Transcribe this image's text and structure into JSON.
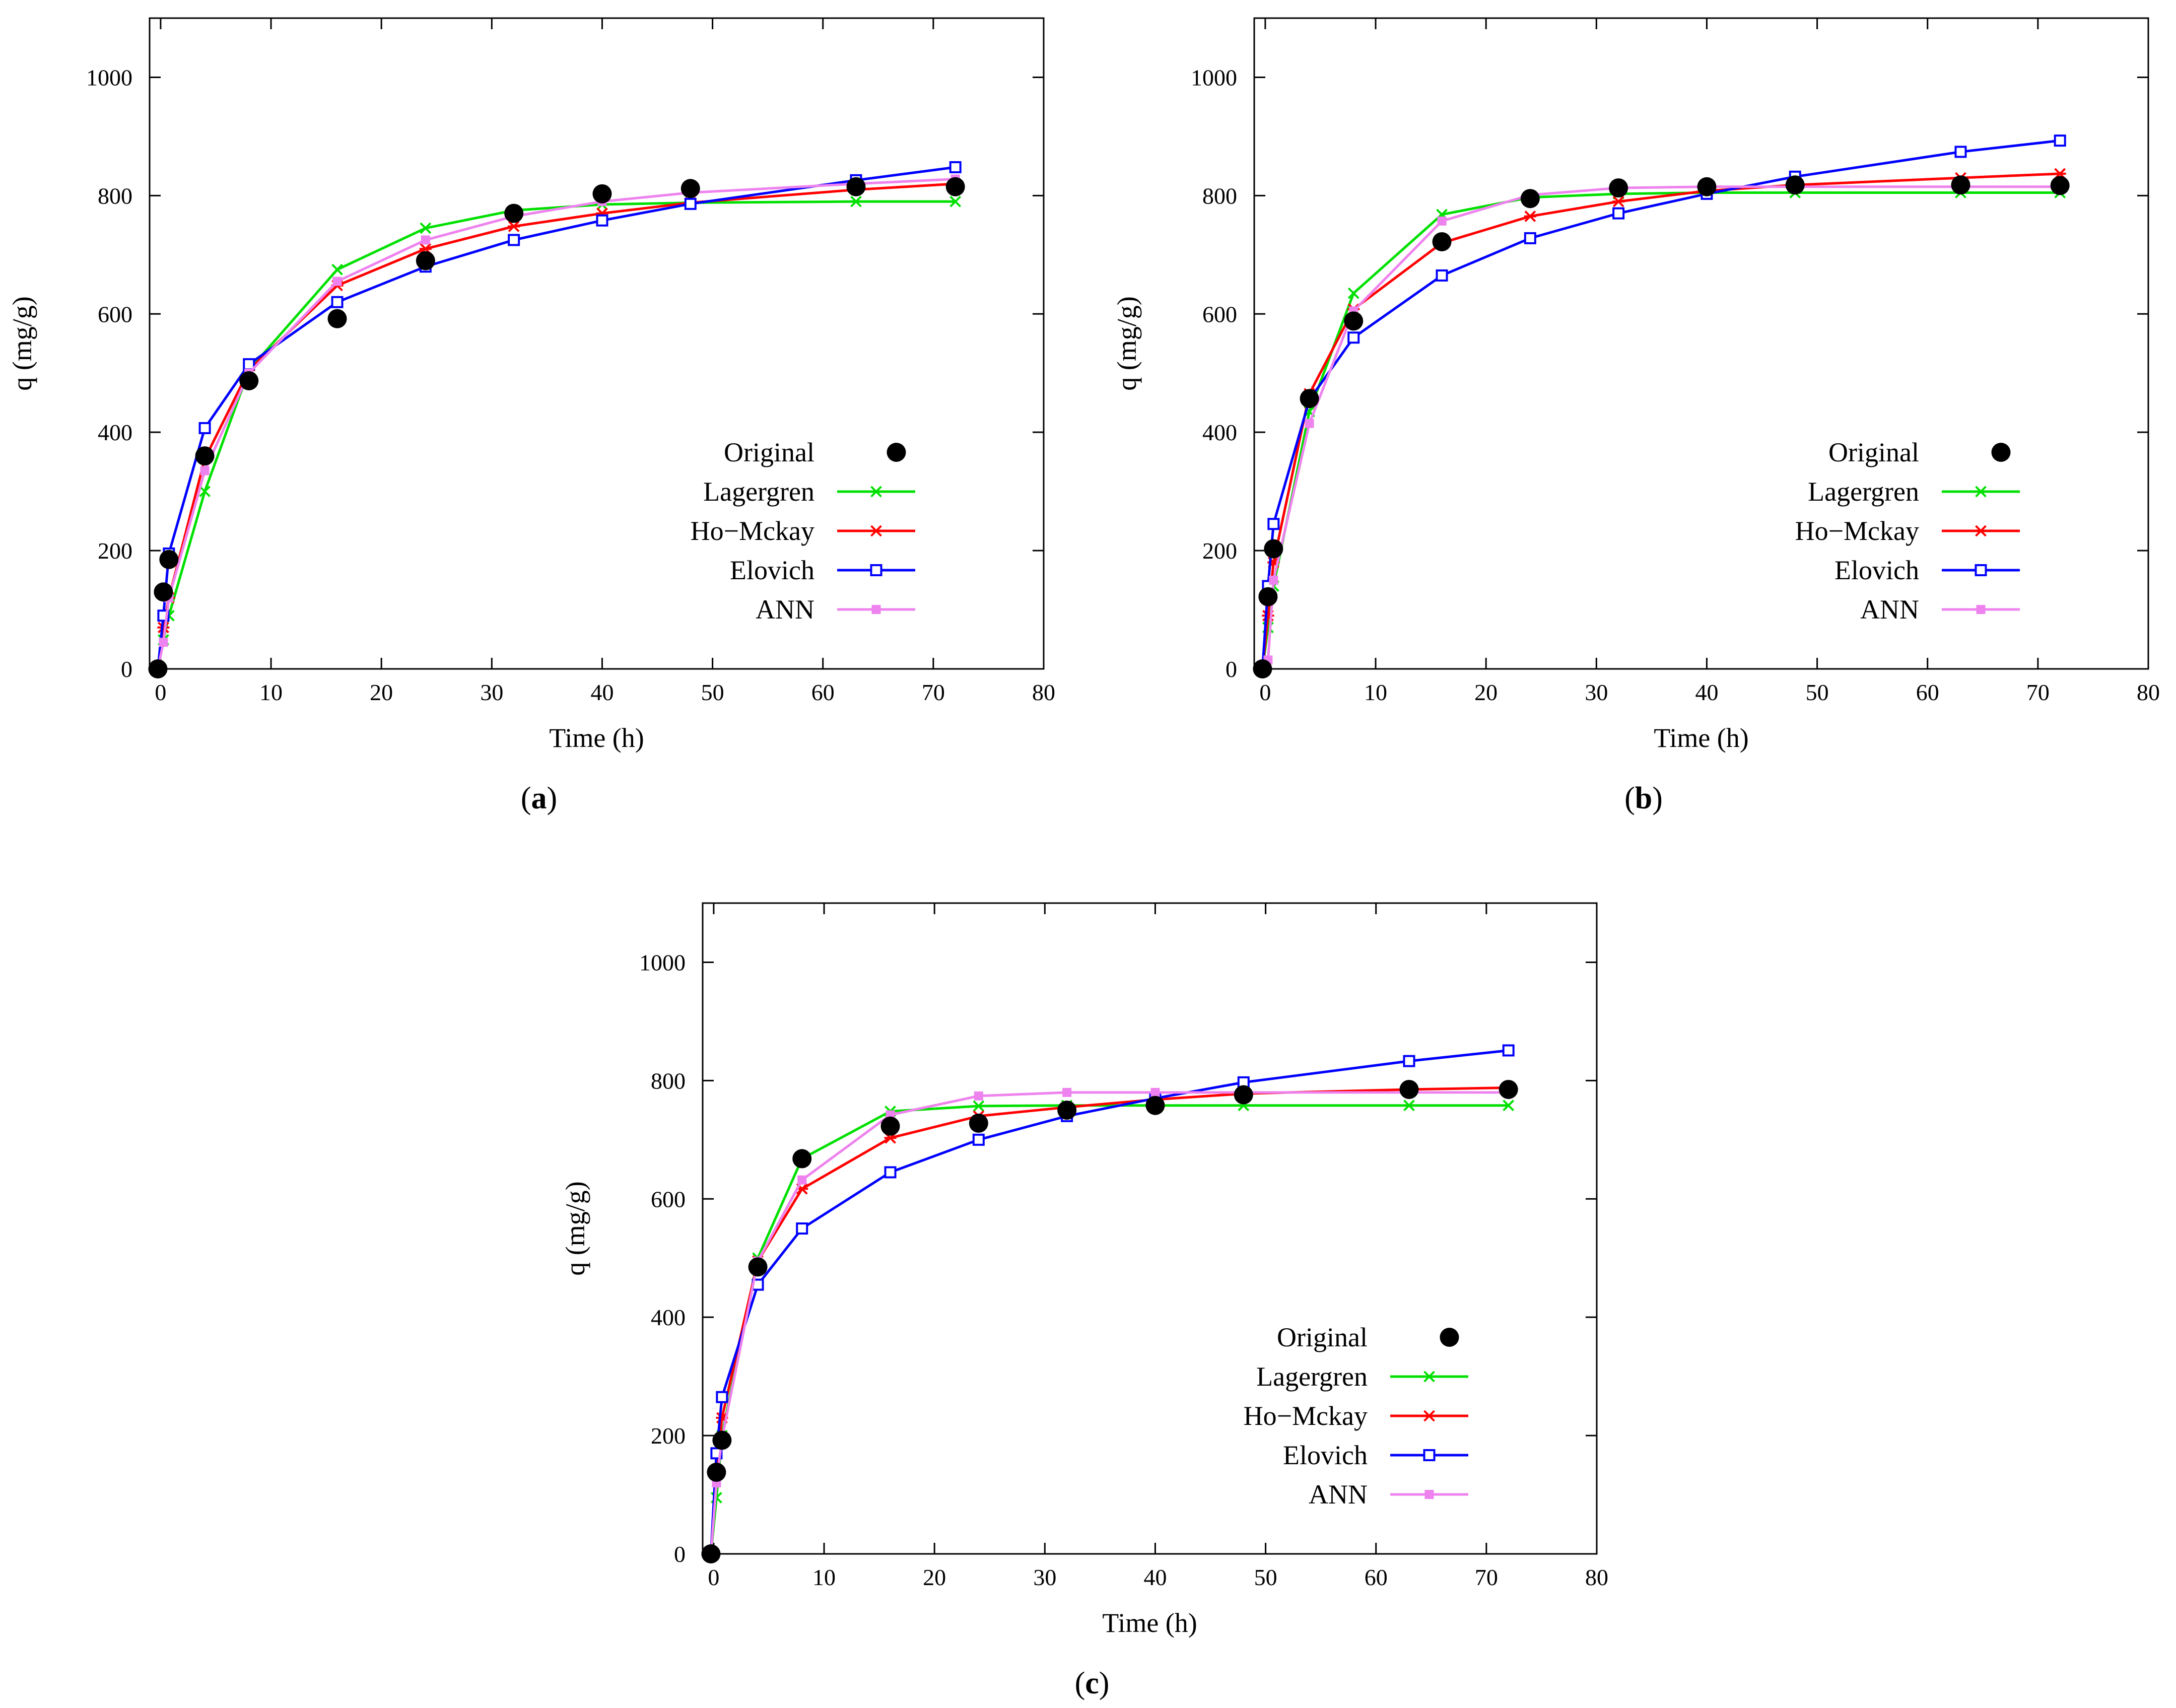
{
  "figure": {
    "captions": [
      "a",
      "b",
      "c"
    ]
  },
  "series_styles": [
    {
      "name": "Original",
      "color": "#000000",
      "marker": "filled-circle"
    },
    {
      "name": "Lagergren",
      "color": "#00e000",
      "marker": "x-cross"
    },
    {
      "name": "Ho−Mckay",
      "color": "#ff0000",
      "marker": "star"
    },
    {
      "name": "Elovich",
      "color": "#0000ff",
      "marker": "open-square"
    },
    {
      "name": "ANN",
      "color": "#ee82ee",
      "marker": "filled-square"
    }
  ],
  "chart_data": [
    {
      "type": "line",
      "panel": "a",
      "xlabel": "Time (h)",
      "ylabel": "q (mg/g)",
      "xlim": [
        -1,
        80
      ],
      "ylim": [
        0,
        1100
      ],
      "xticks": [
        0,
        10,
        20,
        30,
        40,
        50,
        60,
        70,
        80
      ],
      "yticks": [
        0,
        200,
        400,
        600,
        800,
        1000
      ],
      "legend_position": "bottom-right",
      "series": [
        {
          "name": "Original",
          "x": [
            -0.25,
            0.25,
            0.75,
            4,
            8,
            16,
            24,
            32,
            40,
            48,
            63,
            72
          ],
          "y": [
            0,
            130,
            185,
            360,
            487,
            592,
            690,
            770,
            803,
            812,
            815,
            815
          ]
        },
        {
          "name": "Lagergren",
          "x": [
            -0.25,
            0.25,
            0.75,
            4,
            8,
            16,
            24,
            32,
            40,
            48,
            63,
            72
          ],
          "y": [
            0,
            49,
            90,
            300,
            505,
            675,
            745,
            775,
            785,
            788,
            790,
            790
          ]
        },
        {
          "name": "Ho−Mckay",
          "x": [
            -0.25,
            0.25,
            0.75,
            4,
            8,
            16,
            24,
            32,
            40,
            48,
            63,
            72
          ],
          "y": [
            0,
            70,
            120,
            355,
            505,
            648,
            710,
            748,
            770,
            788,
            810,
            820
          ]
        },
        {
          "name": "Elovich",
          "x": [
            -0.25,
            0.25,
            0.75,
            4,
            8,
            16,
            24,
            32,
            40,
            48,
            63,
            72
          ],
          "y": [
            0,
            90,
            195,
            407,
            515,
            620,
            680,
            725,
            758,
            786,
            826,
            848
          ]
        },
        {
          "name": "ANN",
          "x": [
            -0.25,
            0.25,
            0.75,
            4,
            8,
            16,
            24,
            32,
            40,
            48,
            63,
            72
          ],
          "y": [
            0,
            45,
            120,
            335,
            500,
            655,
            725,
            765,
            790,
            805,
            820,
            828
          ]
        }
      ]
    },
    {
      "type": "line",
      "panel": "b",
      "xlabel": "Time (h)",
      "ylabel": "q (mg/g)",
      "xlim": [
        -1,
        80
      ],
      "ylim": [
        0,
        1100
      ],
      "xticks": [
        0,
        10,
        20,
        30,
        40,
        50,
        60,
        70,
        80
      ],
      "yticks": [
        0,
        200,
        400,
        600,
        800,
        1000
      ],
      "legend_position": "bottom-right",
      "series": [
        {
          "name": "Original",
          "x": [
            -0.25,
            0.25,
            0.75,
            4,
            8,
            16,
            24,
            32,
            40,
            48,
            63,
            72
          ],
          "y": [
            0,
            122,
            203,
            457,
            588,
            722,
            795,
            813,
            815,
            818,
            818,
            817
          ]
        },
        {
          "name": "Lagergren",
          "x": [
            -0.25,
            0.25,
            0.75,
            4,
            8,
            16,
            24,
            32,
            40,
            48,
            63,
            72
          ],
          "y": [
            0,
            70,
            140,
            435,
            635,
            768,
            797,
            803,
            805,
            805,
            805,
            805
          ]
        },
        {
          "name": "Ho−Mckay",
          "x": [
            -0.25,
            0.25,
            0.75,
            4,
            8,
            16,
            24,
            32,
            40,
            48,
            63,
            72
          ],
          "y": [
            0,
            90,
            180,
            465,
            608,
            720,
            765,
            790,
            808,
            818,
            830,
            837
          ]
        },
        {
          "name": "Elovich",
          "x": [
            -0.25,
            0.25,
            0.75,
            4,
            8,
            16,
            24,
            32,
            40,
            48,
            63,
            72
          ],
          "y": [
            0,
            140,
            245,
            455,
            560,
            665,
            728,
            770,
            803,
            832,
            874,
            893
          ]
        },
        {
          "name": "ANN",
          "x": [
            -0.25,
            0.25,
            0.75,
            4,
            8,
            16,
            24,
            32,
            40,
            48,
            63,
            72
          ],
          "y": [
            0,
            15,
            150,
            415,
            605,
            757,
            801,
            813,
            815,
            815,
            815,
            815
          ]
        }
      ]
    },
    {
      "type": "line",
      "panel": "c",
      "xlabel": "Time (h)",
      "ylabel": "q (mg/g)",
      "xlim": [
        -1,
        80
      ],
      "ylim": [
        0,
        1100
      ],
      "xticks": [
        0,
        10,
        20,
        30,
        40,
        50,
        60,
        70,
        80
      ],
      "yticks": [
        0,
        200,
        400,
        600,
        800,
        1000
      ],
      "legend_position": "bottom-right",
      "series": [
        {
          "name": "Original",
          "x": [
            -0.25,
            0.25,
            0.75,
            4,
            8,
            16,
            24,
            32,
            40,
            48,
            63,
            72
          ],
          "y": [
            0,
            138,
            192,
            485,
            668,
            723,
            728,
            750,
            758,
            776,
            785,
            785
          ]
        },
        {
          "name": "Lagergren",
          "x": [
            -0.25,
            0.25,
            0.75,
            4,
            8,
            16,
            24,
            32,
            40,
            48,
            63,
            72
          ],
          "y": [
            0,
            95,
            200,
            500,
            668,
            748,
            757,
            758,
            758,
            758,
            758,
            758
          ]
        },
        {
          "name": "Ho−Mckay",
          "x": [
            -0.25,
            0.25,
            0.75,
            4,
            8,
            16,
            24,
            32,
            40,
            48,
            63,
            72
          ],
          "y": [
            0,
            140,
            230,
            495,
            617,
            703,
            740,
            755,
            768,
            778,
            785,
            788
          ]
        },
        {
          "name": "Elovich",
          "x": [
            -0.25,
            0.25,
            0.75,
            4,
            8,
            16,
            24,
            32,
            40,
            48,
            63,
            72
          ],
          "y": [
            0,
            170,
            265,
            455,
            550,
            645,
            700,
            740,
            770,
            797,
            833,
            851
          ]
        },
        {
          "name": "ANN",
          "x": [
            -0.25,
            0.25,
            0.75,
            4,
            8,
            16,
            24,
            32,
            40,
            48,
            63,
            72
          ],
          "y": [
            0,
            120,
            195,
            495,
            632,
            742,
            774,
            780,
            780,
            780,
            780,
            780
          ]
        }
      ]
    }
  ]
}
